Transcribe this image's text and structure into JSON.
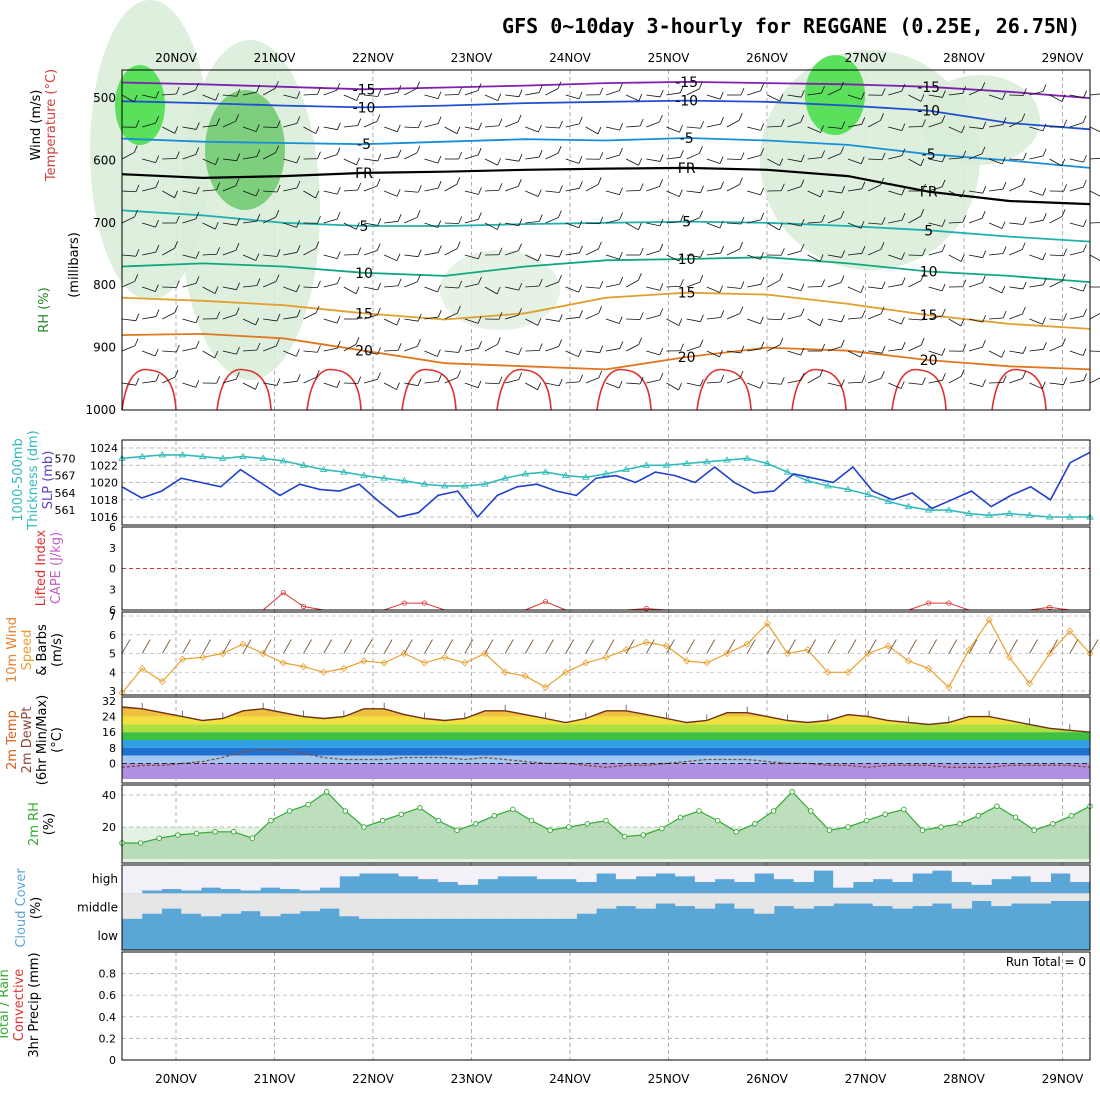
{
  "title": "GFS 0~10day 3-hourly for REGGANE (0.25E, 26.75N)",
  "date_ticks": [
    "20NOV",
    "21NOV",
    "22NOV",
    "23NOV",
    "24NOV",
    "25NOV",
    "26NOV",
    "27NOV",
    "28NOV",
    "29NOV"
  ],
  "panel_labels": {
    "upper": [
      "Wind (m/s)",
      "Temperature (°C)",
      "RH (%)",
      "(millibars)"
    ],
    "slp": [
      "1000-500mb",
      "Thickness (dm)",
      "SLP (mb)"
    ],
    "cape": [
      "Lifted Index",
      "CAPE (J/kg)"
    ],
    "wind10": [
      "10m Wind",
      "Speed",
      "& Barbs",
      "(m/s)"
    ],
    "temp2m": [
      "2m Temp",
      "2m DewPt",
      "(6hr Min/Max)",
      "(°C)"
    ],
    "rh2m": [
      "2m RH",
      "(%)"
    ],
    "cloud": [
      "Cloud Cover",
      "(%)"
    ],
    "precip": [
      "Total / Rain",
      "Convective",
      "3hr Precip (mm)"
    ]
  },
  "colors": {
    "thickness": "#33bbbb",
    "slp": "#1f3fcc",
    "cape": "#dd3333",
    "wind": "#e8a030",
    "temp": "#d86020",
    "rh": "#33aa33",
    "cloud": "#5aa6d6",
    "freezing": "#000000"
  },
  "chart_data": [
    {
      "type": "contour",
      "name": "upper",
      "ylabel": "millibars",
      "y_ticks": [
        500,
        600,
        700,
        800,
        900,
        1000
      ],
      "ylim": [
        1000,
        455
      ],
      "isotherms": [
        {
          "label": "-15",
          "color": "#8020b0",
          "p": [
            475,
            478,
            482,
            486,
            483,
            480,
            476,
            474,
            476,
            478,
            482,
            490,
            500
          ]
        },
        {
          "label": "-10",
          "color": "#2050d0",
          "p": [
            505,
            508,
            512,
            515,
            512,
            508,
            506,
            504,
            506,
            512,
            520,
            540,
            550
          ]
        },
        {
          "label": "-5",
          "color": "#1890d8",
          "p": [
            565,
            570,
            572,
            574,
            570,
            566,
            568,
            564,
            568,
            575,
            590,
            600,
            612
          ]
        },
        {
          "label": "FR",
          "color": "#000000",
          "p": [
            622,
            628,
            625,
            620,
            618,
            615,
            613,
            612,
            615,
            625,
            650,
            665,
            670
          ]
        },
        {
          "label": "5",
          "color": "#20b0b0",
          "p": [
            680,
            688,
            700,
            705,
            705,
            702,
            700,
            698,
            700,
            705,
            712,
            722,
            730
          ]
        },
        {
          "label": "10",
          "color": "#10a880",
          "p": [
            770,
            765,
            770,
            780,
            785,
            770,
            760,
            758,
            755,
            765,
            778,
            785,
            795
          ]
        },
        {
          "label": "15",
          "color": "#e0a030",
          "p": [
            820,
            825,
            832,
            845,
            855,
            845,
            820,
            812,
            815,
            830,
            848,
            862,
            870
          ]
        },
        {
          "label": "20",
          "color": "#e07820",
          "p": [
            880,
            878,
            885,
            905,
            925,
            930,
            935,
            915,
            900,
            905,
            920,
            930,
            935
          ]
        }
      ]
    },
    {
      "type": "line",
      "name": "slp-thickness",
      "y_ticks_left": [
        561,
        564,
        567,
        570
      ],
      "y_ticks_right": [
        1016,
        1018,
        1020,
        1022,
        1024
      ],
      "series": [
        {
          "name": "1000-500mb Thickness (dm)",
          "values": [
            1022.8,
            1023.0,
            1023.2,
            1023.2,
            1023.0,
            1022.8,
            1023.0,
            1022.8,
            1022.5,
            1022.0,
            1021.5,
            1021.2,
            1020.8,
            1020.5,
            1020.2,
            1019.8,
            1019.6,
            1019.6,
            1019.8,
            1020.5,
            1021.0,
            1021.2,
            1020.8,
            1020.6,
            1021.0,
            1021.5,
            1022.0,
            1022.0,
            1022.2,
            1022.4,
            1022.6,
            1022.8,
            1022.2,
            1021.2,
            1020.2,
            1019.6,
            1019.2,
            1018.6,
            1017.8,
            1017.2,
            1016.8,
            1016.8,
            1016.4,
            1016.2,
            1016.4,
            1016.2,
            1016.0,
            1016.0,
            1016.0
          ]
        },
        {
          "name": "SLP (mb)",
          "values": [
            1019.5,
            1018.2,
            1019.0,
            1020.5,
            1020.0,
            1019.5,
            1021.5,
            1020.0,
            1018.5,
            1019.8,
            1019.2,
            1019.0,
            1019.8,
            1017.8,
            1016.0,
            1016.5,
            1018.5,
            1019.0,
            1016.0,
            1018.5,
            1019.5,
            1019.8,
            1019.0,
            1018.5,
            1020.5,
            1020.8,
            1020.0,
            1021.2,
            1020.8,
            1020.0,
            1021.8,
            1020.0,
            1018.8,
            1019.0,
            1021.0,
            1020.5,
            1020.0,
            1021.8,
            1019.0,
            1018.0,
            1018.8,
            1017.0,
            1018.0,
            1019.0,
            1017.2,
            1018.5,
            1019.5,
            1018.0,
            1022.3,
            1023.5
          ]
        }
      ]
    },
    {
      "type": "line",
      "name": "cape-li",
      "y_ticks": [
        -6,
        -3,
        0,
        3,
        6
      ],
      "series": [
        {
          "name": "Lifted Index",
          "values": [
            6,
            6,
            6,
            6,
            6,
            6,
            6,
            6,
            3.5,
            5.5,
            6,
            6,
            6,
            6,
            5.0,
            5.0,
            6,
            6,
            6,
            6,
            6,
            4.8,
            6,
            6,
            6,
            6,
            5.8,
            6,
            6,
            6,
            6,
            6,
            6,
            6,
            6,
            6,
            6,
            6,
            6,
            6,
            5.0,
            5.0,
            6,
            6,
            6,
            6,
            5.6,
            6,
            6
          ]
        }
      ]
    },
    {
      "type": "line",
      "name": "wind10m",
      "y_ticks": [
        3,
        4,
        5,
        6,
        7
      ],
      "series": [
        {
          "name": "10m Wind Speed",
          "values": [
            2.9,
            4.2,
            3.5,
            4.7,
            4.8,
            5.0,
            5.5,
            5.0,
            4.5,
            4.3,
            4.0,
            4.2,
            4.6,
            4.5,
            5.0,
            4.5,
            4.8,
            4.5,
            5.0,
            4.0,
            3.8,
            3.2,
            4.0,
            4.5,
            4.8,
            5.2,
            5.6,
            5.4,
            4.6,
            4.5,
            5.0,
            5.5,
            6.6,
            5.0,
            5.2,
            4.0,
            4.0,
            5.0,
            5.4,
            4.6,
            4.2,
            3.2,
            5.2,
            6.8,
            4.8,
            3.4,
            5.0,
            6.2,
            5.0
          ]
        }
      ]
    },
    {
      "type": "area",
      "name": "temp2m",
      "y_ticks": [
        0,
        8,
        16,
        24,
        32
      ],
      "series": [
        {
          "name": "2m Temp",
          "values": [
            29,
            28,
            26,
            24,
            22,
            23,
            27,
            28,
            26,
            24,
            23,
            24,
            28,
            28,
            25,
            23,
            22,
            23,
            27,
            27,
            25,
            23,
            21,
            23,
            27,
            27,
            25,
            23,
            21,
            22,
            26,
            26,
            24,
            22,
            21,
            22,
            25,
            24,
            22,
            21,
            20,
            21,
            24,
            24,
            22,
            20,
            18,
            17,
            16
          ]
        },
        {
          "name": "2m DewPt",
          "values": [
            -2,
            -1,
            -1,
            0,
            1,
            3,
            6,
            7,
            7,
            5,
            3,
            2,
            2,
            2,
            3,
            3,
            3,
            2,
            3,
            2,
            1,
            0,
            0,
            -1,
            -2,
            -1,
            -1,
            0,
            1,
            2,
            2,
            2,
            1,
            0,
            0,
            -1,
            -1,
            -2,
            -1,
            -1,
            -1,
            -2,
            -2,
            -2,
            -1,
            -1,
            -1,
            -1,
            -2
          ]
        }
      ]
    },
    {
      "type": "area",
      "name": "rh2m",
      "y_ticks": [
        20,
        40
      ],
      "series": [
        {
          "name": "2m RH",
          "values": [
            10,
            10,
            13,
            15,
            16,
            17,
            17,
            13,
            24,
            30,
            34,
            42,
            30,
            20,
            24,
            28,
            32,
            24,
            18,
            22,
            27,
            31,
            24,
            18,
            20,
            22,
            24,
            14,
            15,
            19,
            26,
            30,
            24,
            17,
            22,
            30,
            42,
            30,
            18,
            20,
            24,
            28,
            31,
            18,
            20,
            22,
            27,
            33,
            26,
            18,
            22,
            27,
            33
          ]
        }
      ]
    },
    {
      "type": "heatmap",
      "name": "cloud",
      "rows": [
        "high",
        "middle",
        "low"
      ],
      "high": [
        1,
        0.9,
        0.85,
        0.9,
        0.8,
        0.85,
        0.9,
        0.8,
        0.85,
        0.9,
        0.8,
        0.4,
        0.3,
        0.3,
        0.4,
        0.5,
        0.6,
        0.7,
        0.5,
        0.4,
        0.4,
        0.5,
        0.5,
        0.6,
        0.3,
        0.5,
        0.4,
        0.3,
        0.4,
        0.6,
        0.5,
        0.6,
        0.3,
        0.5,
        0.6,
        0.2,
        0.8,
        0.6,
        0.5,
        0.6,
        0.3,
        0.2,
        0.6,
        0.7,
        0.5,
        0.4,
        0.6,
        0.3,
        0.6
      ],
      "middle": [
        1,
        0.8,
        0.6,
        0.8,
        0.9,
        0.8,
        0.7,
        0.9,
        0.8,
        0.7,
        0.6,
        0.9,
        1,
        1,
        1,
        1,
        1,
        1,
        1,
        1,
        1,
        1,
        1,
        0.8,
        0.6,
        0.5,
        0.6,
        0.4,
        0.5,
        0.6,
        0.4,
        0.6,
        0.8,
        0.5,
        0.6,
        0.5,
        0.4,
        0.4,
        0.5,
        0.6,
        0.5,
        0.4,
        0.6,
        0.3,
        0.5,
        0.4,
        0.4,
        0.3,
        0.3
      ]
    },
    {
      "type": "bar",
      "name": "precip",
      "y_ticks": [
        0,
        0.2,
        0.4,
        0.6,
        0.8
      ],
      "values": [],
      "annotation": "Run Total = 0"
    }
  ]
}
